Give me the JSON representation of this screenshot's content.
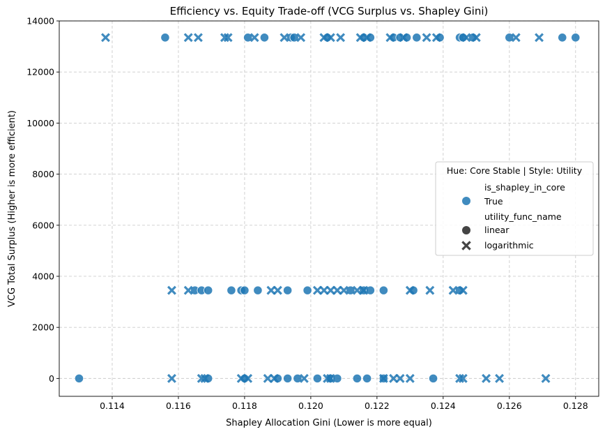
{
  "chart_data": {
    "type": "scatter",
    "title": "Efficiency vs. Equity Trade-off (VCG Surplus vs. Shapley Gini)",
    "xlabel": "Shapley Allocation Gini (Lower is more equal)",
    "ylabel": "VCG Total Surplus (Higher is more efficient)",
    "xlim": [
      0.1124,
      0.1287
    ],
    "ylim": [
      -700,
      14000
    ],
    "xticks": [
      "0.114",
      "0.116",
      "0.118",
      "0.120",
      "0.122",
      "0.124",
      "0.126",
      "0.128"
    ],
    "yticks": [
      "0",
      "2000",
      "4000",
      "6000",
      "8000",
      "10000",
      "12000",
      "14000"
    ],
    "grid": true,
    "color": "#1f77b4",
    "legend": {
      "placement": "center-right",
      "title": "Hue: Core Stable | Style: Utility",
      "hue_title": "is_shapley_in_core",
      "hue_entries": [
        "True"
      ],
      "style_title": "utility_func_name",
      "style_entries": [
        {
          "label": "linear",
          "marker": "circle"
        },
        {
          "label": "logarithmic",
          "marker": "x"
        }
      ]
    },
    "series": [
      {
        "name": "linear",
        "marker": "circle",
        "points": [
          [
            0.1156,
            13350
          ],
          [
            0.1181,
            13350
          ],
          [
            0.1186,
            13350
          ],
          [
            0.1194,
            13350
          ],
          [
            0.1195,
            13350
          ],
          [
            0.1205,
            13350
          ],
          [
            0.1216,
            13350
          ],
          [
            0.1218,
            13350
          ],
          [
            0.1225,
            13350
          ],
          [
            0.1227,
            13350
          ],
          [
            0.1229,
            13350
          ],
          [
            0.1232,
            13350
          ],
          [
            0.1239,
            13350
          ],
          [
            0.1245,
            13350
          ],
          [
            0.1246,
            13350
          ],
          [
            0.1249,
            13350
          ],
          [
            0.126,
            13350
          ],
          [
            0.1276,
            13350
          ],
          [
            0.128,
            13350
          ],
          [
            0.1165,
            3450
          ],
          [
            0.1167,
            3450
          ],
          [
            0.1169,
            3450
          ],
          [
            0.1176,
            3450
          ],
          [
            0.1179,
            3450
          ],
          [
            0.118,
            3450
          ],
          [
            0.1184,
            3450
          ],
          [
            0.1193,
            3450
          ],
          [
            0.1199,
            3450
          ],
          [
            0.1212,
            3450
          ],
          [
            0.1216,
            3450
          ],
          [
            0.1218,
            3450
          ],
          [
            0.1222,
            3450
          ],
          [
            0.1231,
            3450
          ],
          [
            0.1245,
            3450
          ],
          [
            0.113,
            0
          ],
          [
            0.1169,
            0
          ],
          [
            0.118,
            0
          ],
          [
            0.119,
            0
          ],
          [
            0.1193,
            0
          ],
          [
            0.1196,
            0
          ],
          [
            0.1202,
            0
          ],
          [
            0.1206,
            0
          ],
          [
            0.1208,
            0
          ],
          [
            0.1214,
            0
          ],
          [
            0.1217,
            0
          ],
          [
            0.1222,
            0
          ],
          [
            0.1237,
            0
          ]
        ]
      },
      {
        "name": "logarithmic",
        "marker": "x",
        "points": [
          [
            0.1138,
            13350
          ],
          [
            0.1163,
            13350
          ],
          [
            0.1166,
            13350
          ],
          [
            0.1174,
            13350
          ],
          [
            0.1175,
            13350
          ],
          [
            0.1183,
            13350
          ],
          [
            0.1192,
            13350
          ],
          [
            0.1197,
            13350
          ],
          [
            0.1204,
            13350
          ],
          [
            0.1206,
            13350
          ],
          [
            0.1209,
            13350
          ],
          [
            0.1215,
            13350
          ],
          [
            0.1217,
            13350
          ],
          [
            0.1224,
            13350
          ],
          [
            0.1228,
            13350
          ],
          [
            0.1235,
            13350
          ],
          [
            0.1238,
            13350
          ],
          [
            0.1247,
            13350
          ],
          [
            0.125,
            13350
          ],
          [
            0.1262,
            13350
          ],
          [
            0.1269,
            13350
          ],
          [
            0.1158,
            3450
          ],
          [
            0.1163,
            3450
          ],
          [
            0.1188,
            3450
          ],
          [
            0.119,
            3450
          ],
          [
            0.1202,
            3450
          ],
          [
            0.1204,
            3450
          ],
          [
            0.1206,
            3450
          ],
          [
            0.1208,
            3450
          ],
          [
            0.121,
            3450
          ],
          [
            0.1214,
            3450
          ],
          [
            0.1216,
            3450
          ],
          [
            0.123,
            3450
          ],
          [
            0.1236,
            3450
          ],
          [
            0.1243,
            3450
          ],
          [
            0.1246,
            3450
          ],
          [
            0.1158,
            0
          ],
          [
            0.1167,
            0
          ],
          [
            0.1168,
            0
          ],
          [
            0.1179,
            0
          ],
          [
            0.1181,
            0
          ],
          [
            0.1187,
            0
          ],
          [
            0.1189,
            0
          ],
          [
            0.1198,
            0
          ],
          [
            0.1205,
            0
          ],
          [
            0.1206,
            0
          ],
          [
            0.1222,
            0
          ],
          [
            0.1225,
            0
          ],
          [
            0.1227,
            0
          ],
          [
            0.123,
            0
          ],
          [
            0.1245,
            0
          ],
          [
            0.1246,
            0
          ],
          [
            0.1253,
            0
          ],
          [
            0.1257,
            0
          ],
          [
            0.1271,
            0
          ]
        ]
      }
    ]
  }
}
